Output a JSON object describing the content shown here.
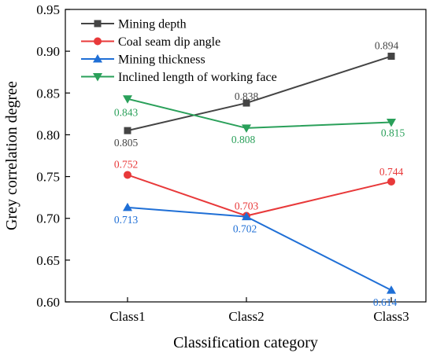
{
  "chart_data": {
    "type": "line",
    "categories": [
      "Class1",
      "Class2",
      "Class3"
    ],
    "xlabel": "Classification category",
    "ylabel": "Grey correlation degree",
    "ylim": [
      0.6,
      0.95
    ],
    "yticks": [
      "0.60",
      "0.65",
      "0.70",
      "0.75",
      "0.80",
      "0.85",
      "0.90",
      "0.95"
    ],
    "legend_position": "top-left",
    "grid": false,
    "series": [
      {
        "name": "Mining depth",
        "color": "#444444",
        "marker": "square",
        "values": [
          0.805,
          0.838,
          0.894
        ],
        "labels": [
          "0.805",
          "0.838",
          "0.894"
        ]
      },
      {
        "name": "Coal seam dip angle",
        "color": "#e8393a",
        "marker": "circle",
        "values": [
          0.752,
          0.703,
          0.744
        ],
        "labels": [
          "0.752",
          "0.703",
          "0.744"
        ]
      },
      {
        "name": "Mining thickness",
        "color": "#1f6fd6",
        "marker": "triangle-up",
        "values": [
          0.713,
          0.702,
          0.614
        ],
        "labels": [
          "0.713",
          "0.702",
          "0.614"
        ]
      },
      {
        "name": "Inclined length of working face",
        "color": "#2aa05a",
        "marker": "triangle-down",
        "values": [
          0.843,
          0.808,
          0.815
        ],
        "labels": [
          "0.843",
          "0.808",
          "0.815"
        ]
      }
    ]
  }
}
